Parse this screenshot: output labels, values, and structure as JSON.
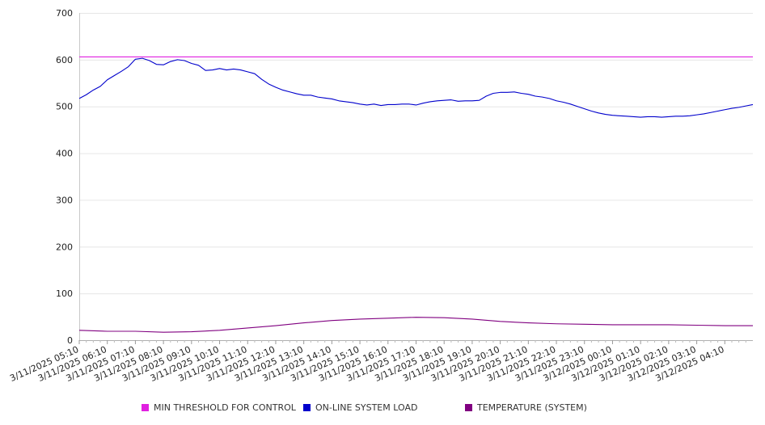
{
  "chart_data": {
    "type": "line",
    "ylim": [
      0,
      700
    ],
    "yticks": [
      0,
      100,
      200,
      300,
      400,
      500,
      600,
      700
    ],
    "xlim": [
      "3/11/2025 05:10",
      "3/12/2025 05:10"
    ],
    "x_tick_labels": [
      "3/11/2025 05:10",
      "3/11/2025 06:10",
      "3/11/2025 07:10",
      "3/11/2025 08:10",
      "3/11/2025 09:10",
      "3/11/2025 10:10",
      "3/11/2025 11:10",
      "3/11/2025 12:10",
      "3/11/2025 13:10",
      "3/11/2025 14:10",
      "3/11/2025 15:10",
      "3/11/2025 16:10",
      "3/11/2025 17:10",
      "3/11/2025 18:10",
      "3/11/2025 19:10",
      "3/11/2025 20:10",
      "3/11/2025 21:10",
      "3/11/2025 22:10",
      "3/11/2025 23:10",
      "3/12/2025 00:10",
      "3/12/2025 01:10",
      "3/12/2025 02:10",
      "3/12/2025 03:10",
      "3/12/2025 04:10"
    ],
    "grid": true,
    "legend_position": "bottom",
    "series": [
      {
        "name": "MIN THRESHOLD FOR CONTROL",
        "color": "#e020e0",
        "x": [
          "3/11/2025 05:10",
          "3/12/2025 05:10"
        ],
        "values": [
          606,
          606
        ]
      },
      {
        "name": "ON-LINE SYSTEM LOAD",
        "color": "#0000cc",
        "x": [
          "3/11/2025 05:10",
          "3/11/2025 05:25",
          "3/11/2025 05:40",
          "3/11/2025 05:55",
          "3/11/2025 06:10",
          "3/11/2025 06:25",
          "3/11/2025 06:40",
          "3/11/2025 06:55",
          "3/11/2025 07:10",
          "3/11/2025 07:25",
          "3/11/2025 07:40",
          "3/11/2025 07:55",
          "3/11/2025 08:10",
          "3/11/2025 08:25",
          "3/11/2025 08:40",
          "3/11/2025 08:55",
          "3/11/2025 09:10",
          "3/11/2025 09:25",
          "3/11/2025 09:40",
          "3/11/2025 09:55",
          "3/11/2025 10:10",
          "3/11/2025 10:25",
          "3/11/2025 10:40",
          "3/11/2025 10:55",
          "3/11/2025 11:10",
          "3/11/2025 11:25",
          "3/11/2025 11:40",
          "3/11/2025 11:55",
          "3/11/2025 12:10",
          "3/11/2025 12:25",
          "3/11/2025 12:40",
          "3/11/2025 12:55",
          "3/11/2025 13:10",
          "3/11/2025 13:25",
          "3/11/2025 13:40",
          "3/11/2025 13:55",
          "3/11/2025 14:10",
          "3/11/2025 14:25",
          "3/11/2025 14:40",
          "3/11/2025 14:55",
          "3/11/2025 15:10",
          "3/11/2025 15:25",
          "3/11/2025 15:40",
          "3/11/2025 15:55",
          "3/11/2025 16:10",
          "3/11/2025 16:25",
          "3/11/2025 16:40",
          "3/11/2025 16:55",
          "3/11/2025 17:10",
          "3/11/2025 17:25",
          "3/11/2025 17:40",
          "3/11/2025 17:55",
          "3/11/2025 18:10",
          "3/11/2025 18:25",
          "3/11/2025 18:40",
          "3/11/2025 18:55",
          "3/11/2025 19:10",
          "3/11/2025 19:25",
          "3/11/2025 19:40",
          "3/11/2025 19:55",
          "3/11/2025 20:10",
          "3/11/2025 20:25",
          "3/11/2025 20:40",
          "3/11/2025 20:55",
          "3/11/2025 21:10",
          "3/11/2025 21:25",
          "3/11/2025 21:40",
          "3/11/2025 21:55",
          "3/11/2025 22:10",
          "3/11/2025 22:25",
          "3/11/2025 22:40",
          "3/11/2025 22:55",
          "3/11/2025 23:10",
          "3/11/2025 23:25",
          "3/11/2025 23:40",
          "3/11/2025 23:55",
          "3/12/2025 00:10",
          "3/12/2025 00:25",
          "3/12/2025 00:40",
          "3/12/2025 00:55",
          "3/12/2025 01:10",
          "3/12/2025 01:25",
          "3/12/2025 01:40",
          "3/12/2025 01:55",
          "3/12/2025 02:10",
          "3/12/2025 02:25",
          "3/12/2025 02:40",
          "3/12/2025 02:55",
          "3/12/2025 03:10",
          "3/12/2025 03:25",
          "3/12/2025 03:40",
          "3/12/2025 03:55",
          "3/12/2025 04:10",
          "3/12/2025 04:25",
          "3/12/2025 04:40",
          "3/12/2025 04:55",
          "3/12/2025 05:10"
        ],
        "values": [
          517,
          525,
          535,
          543,
          557,
          566,
          575,
          585,
          601,
          603,
          598,
          590,
          589,
          596,
          600,
          598,
          592,
          588,
          577,
          578,
          581,
          578,
          580,
          578,
          574,
          570,
          558,
          548,
          541,
          535,
          531,
          527,
          524,
          524,
          520,
          518,
          516,
          512,
          510,
          508,
          505,
          503,
          505,
          502,
          504,
          504,
          505,
          505,
          503,
          507,
          510,
          512,
          513,
          514,
          511,
          512,
          512,
          513,
          522,
          528,
          530,
          530,
          531,
          528,
          526,
          522,
          520,
          517,
          512,
          509,
          505,
          500,
          495,
          490,
          486,
          483,
          481,
          480,
          479,
          478,
          477,
          478,
          478,
          477,
          478,
          479,
          479,
          480,
          482,
          484,
          487,
          490,
          493,
          496,
          498,
          501,
          504
        ]
      },
      {
        "name": "TEMPERATURE (SYSTEM)",
        "color": "#800080",
        "x": [
          "3/11/2025 05:10",
          "3/11/2025 06:10",
          "3/11/2025 07:10",
          "3/11/2025 08:10",
          "3/11/2025 09:10",
          "3/11/2025 10:10",
          "3/11/2025 11:10",
          "3/11/2025 12:10",
          "3/11/2025 13:10",
          "3/11/2025 14:10",
          "3/11/2025 15:10",
          "3/11/2025 16:10",
          "3/11/2025 17:10",
          "3/11/2025 18:10",
          "3/11/2025 19:10",
          "3/11/2025 20:10",
          "3/11/2025 21:10",
          "3/11/2025 22:10",
          "3/11/2025 23:10",
          "3/12/2025 00:10",
          "3/12/2025 01:10",
          "3/12/2025 02:10",
          "3/12/2025 03:10",
          "3/12/2025 04:10",
          "3/12/2025 05:10"
        ],
        "values": [
          21,
          19,
          19,
          17,
          18,
          21,
          26,
          31,
          37,
          42,
          45,
          47,
          49,
          48,
          45,
          40,
          37,
          35,
          34,
          33,
          33,
          33,
          32,
          31,
          31
        ]
      }
    ]
  }
}
